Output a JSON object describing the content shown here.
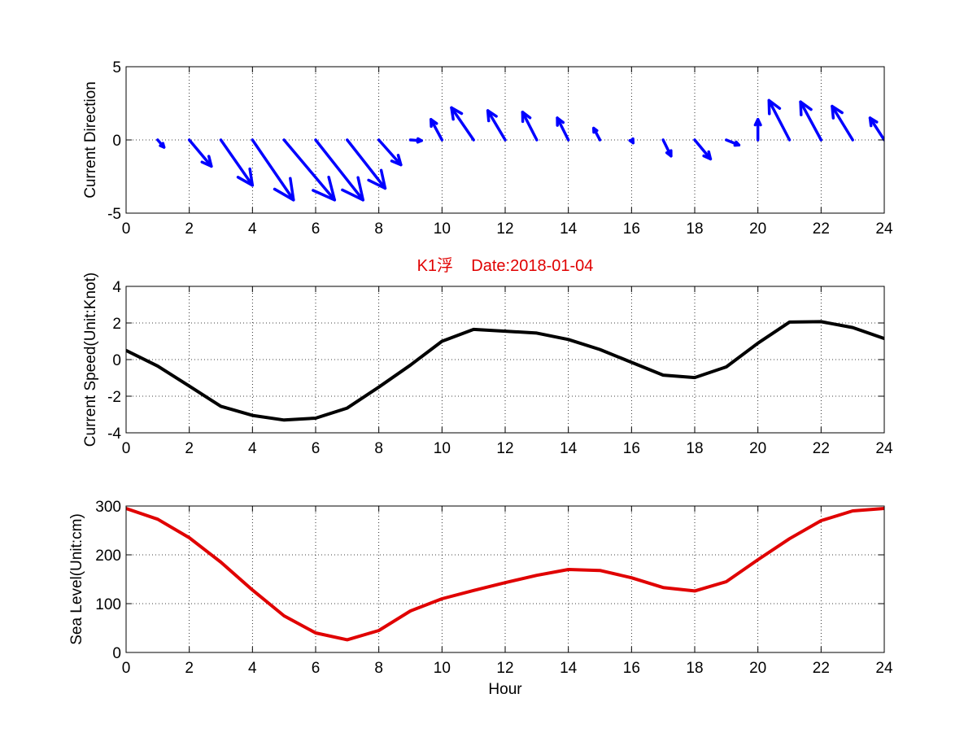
{
  "figure": {
    "title": "K1浮    Date:2018-01-04",
    "title_color": "#e00000",
    "xlabel": "Hour"
  },
  "chart_data": [
    {
      "type": "quiver",
      "ylabel": "Current Direction",
      "xlim": [
        0,
        24
      ],
      "ylim": [
        -5,
        5
      ],
      "xticks": [
        "0",
        "2",
        "4",
        "6",
        "8",
        "10",
        "12",
        "14",
        "16",
        "18",
        "20",
        "22",
        "24"
      ],
      "yticks": [
        "-5",
        "0",
        "5"
      ],
      "grid": true,
      "color": "#0000ff",
      "x": [
        1,
        2,
        3,
        4,
        5,
        6,
        7,
        8,
        9,
        10,
        11,
        12,
        13,
        14,
        15,
        16,
        17,
        18,
        19,
        20,
        21,
        22,
        23,
        24
      ],
      "u": [
        0.2,
        0.7,
        1.0,
        1.3,
        1.6,
        1.5,
        1.2,
        0.7,
        0.35,
        -0.35,
        -0.7,
        -0.55,
        -0.45,
        -0.35,
        -0.2,
        0.05,
        0.25,
        0.5,
        0.4,
        0.0,
        -0.65,
        -0.65,
        -0.65,
        -0.45
      ],
      "v": [
        -0.5,
        -1.8,
        -3.1,
        -4.1,
        -4.1,
        -4.1,
        -3.3,
        -1.7,
        -0.05,
        1.4,
        2.2,
        2.0,
        1.9,
        1.5,
        0.8,
        -0.2,
        -1.1,
        -1.3,
        -0.35,
        1.4,
        2.7,
        2.6,
        2.3,
        1.5
      ]
    },
    {
      "type": "line",
      "ylabel": "Current Speed(Unit:Knot)",
      "xlim": [
        0,
        24
      ],
      "ylim": [
        -4,
        4
      ],
      "xticks": [
        "0",
        "2",
        "4",
        "6",
        "8",
        "10",
        "12",
        "14",
        "16",
        "18",
        "20",
        "22",
        "24"
      ],
      "yticks": [
        "-4",
        "-2",
        "0",
        "2",
        "4"
      ],
      "grid": true,
      "color": "#000000",
      "x": [
        0,
        1,
        2,
        3,
        4,
        5,
        6,
        7,
        8,
        9,
        10,
        11,
        12,
        13,
        14,
        15,
        16,
        17,
        18,
        19,
        20,
        21,
        22,
        23,
        24
      ],
      "values": [
        0.5,
        -0.35,
        -1.45,
        -2.55,
        -3.05,
        -3.3,
        -3.2,
        -2.65,
        -1.5,
        -0.3,
        1.0,
        1.65,
        1.55,
        1.45,
        1.1,
        0.55,
        -0.15,
        -0.85,
        -0.98,
        -0.4,
        0.9,
        2.05,
        2.07,
        1.75,
        1.15
      ]
    },
    {
      "type": "line",
      "ylabel": "Sea Level(Unit:cm)",
      "xlim": [
        0,
        24
      ],
      "ylim": [
        0,
        300
      ],
      "xticks": [
        "0",
        "2",
        "4",
        "6",
        "8",
        "10",
        "12",
        "14",
        "16",
        "18",
        "20",
        "22",
        "24"
      ],
      "yticks": [
        "0",
        "100",
        "200",
        "300"
      ],
      "grid": true,
      "color": "#e00000",
      "x": [
        0,
        1,
        2,
        3,
        4,
        5,
        6,
        7,
        8,
        9,
        10,
        11,
        12,
        13,
        14,
        15,
        16,
        17,
        18,
        19,
        20,
        21,
        22,
        23,
        24
      ],
      "values": [
        295,
        273,
        235,
        185,
        128,
        75,
        40,
        26,
        45,
        85,
        110,
        127,
        143,
        158,
        170,
        168,
        153,
        133,
        126,
        145,
        190,
        233,
        270,
        290,
        295
      ]
    }
  ]
}
